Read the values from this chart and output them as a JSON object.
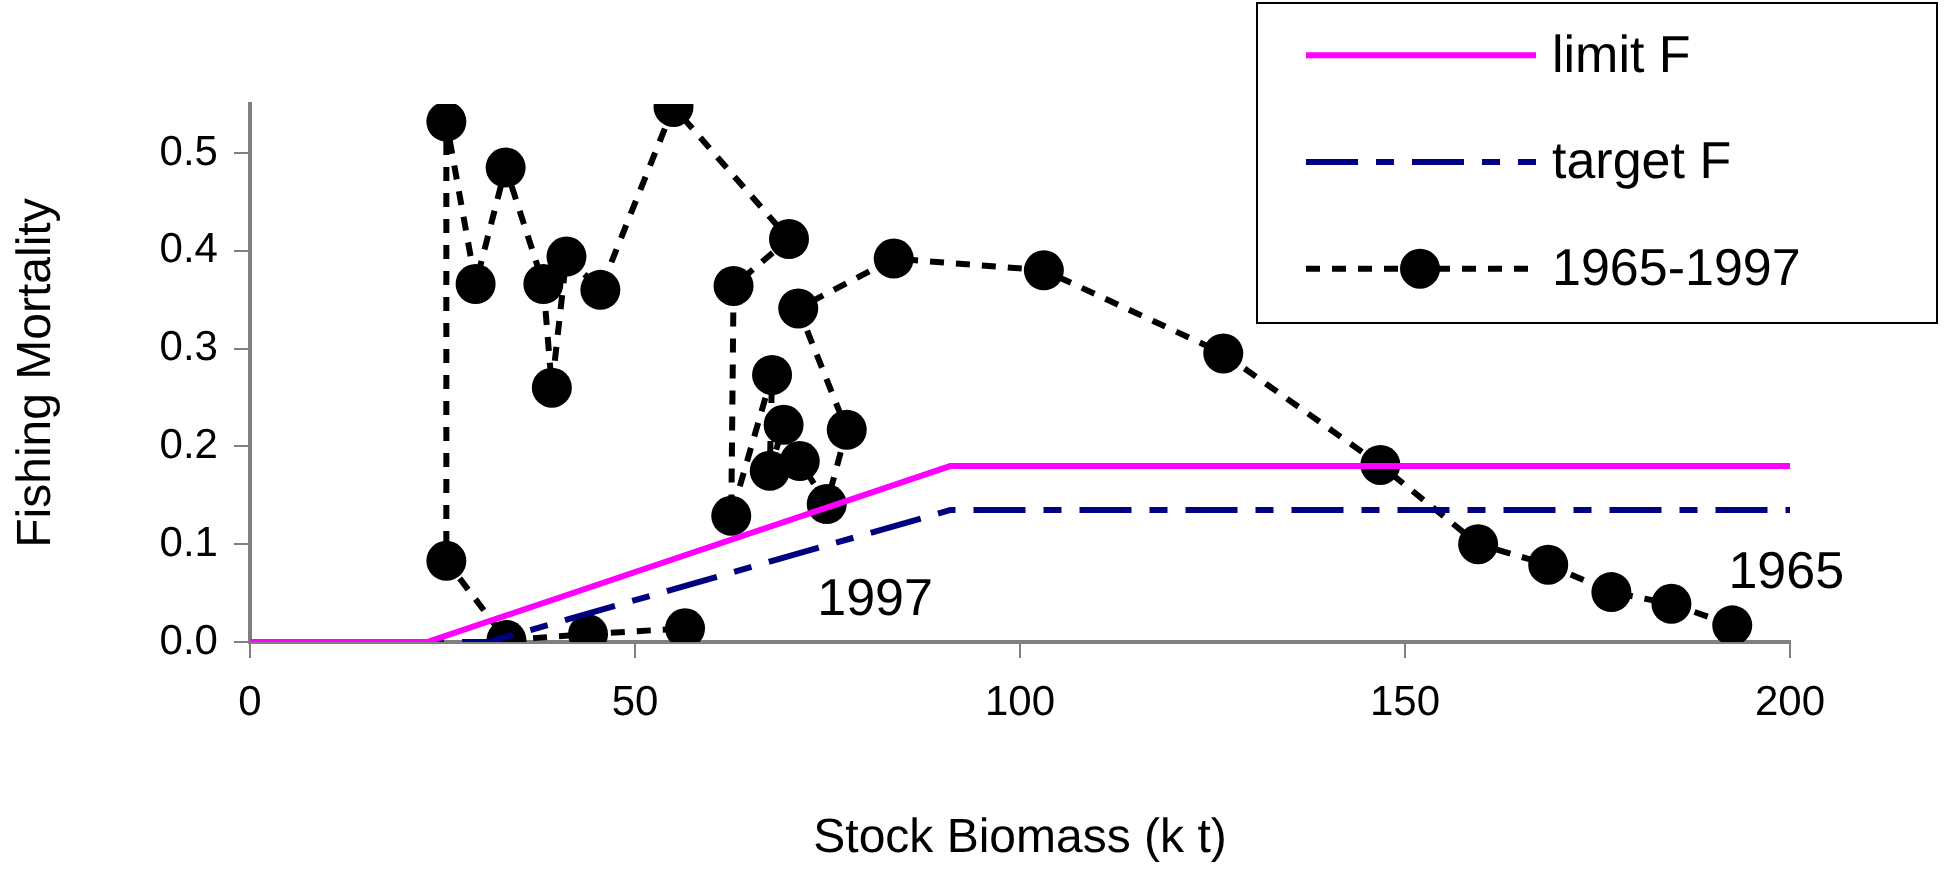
{
  "chart_data": {
    "type": "line",
    "xlabel": "Stock Biomass (k t)",
    "ylabel": "Fishing Mortality",
    "xlim": [
      0,
      200
    ],
    "xticks": [
      0,
      50,
      100,
      150,
      200
    ],
    "ylim": [
      0,
      0.55
    ],
    "yticks": [
      {
        "value": 0,
        "label": "0.0"
      },
      {
        "value": 0.1,
        "label": "0.1"
      },
      {
        "value": 0.2,
        "label": "0.2"
      },
      {
        "value": 0.3,
        "label": "0.3"
      },
      {
        "value": 0.4,
        "label": "0.4"
      },
      {
        "value": 0.5,
        "label": "0.5"
      }
    ],
    "grid": false,
    "legend": "top right",
    "series": [
      {
        "name": "limit F",
        "color": "#ff00ff",
        "line_style": "solid",
        "marker": "none",
        "x": [
          0,
          23,
          91,
          200
        ],
        "values": [
          0,
          0,
          0.18,
          0.18
        ]
      },
      {
        "name": "target F",
        "color": "#000080",
        "line_style": "dashed",
        "marker": "none",
        "x": [
          0,
          31,
          91,
          200
        ],
        "values": [
          0,
          0,
          0.135,
          0.135
        ]
      },
      {
        "name": "1965-1997",
        "color": "#000000",
        "line_style": "dotted",
        "marker": "circle",
        "x": [
          192.5,
          184.6,
          176.8,
          168.6,
          159.5,
          146.8,
          126.4,
          103.1,
          83.6,
          71.2,
          77.5,
          74.9,
          71.4,
          69.3,
          67.5,
          67.8,
          62.5,
          62.8,
          70,
          55,
          45.5,
          41.1,
          39.2,
          38.1,
          33.2,
          29.3,
          25.5,
          25.5,
          33.3,
          43.9,
          56.5
        ],
        "values": [
          0.017,
          0.039,
          0.051,
          0.079,
          0.1,
          0.181,
          0.295,
          0.38,
          0.392,
          0.341,
          0.217,
          0.141,
          0.185,
          0.222,
          0.175,
          0.273,
          0.129,
          0.364,
          0.412,
          0.547,
          0.36,
          0.394,
          0.26,
          0.366,
          0.485,
          0.366,
          0.532,
          0.083,
          0.002,
          0.008,
          0.014
        ]
      }
    ],
    "annotations": [
      {
        "text": "1997",
        "x": 56.5,
        "y": 0.014
      },
      {
        "text": "1965",
        "x": 192.5,
        "y": 0.017
      }
    ]
  }
}
